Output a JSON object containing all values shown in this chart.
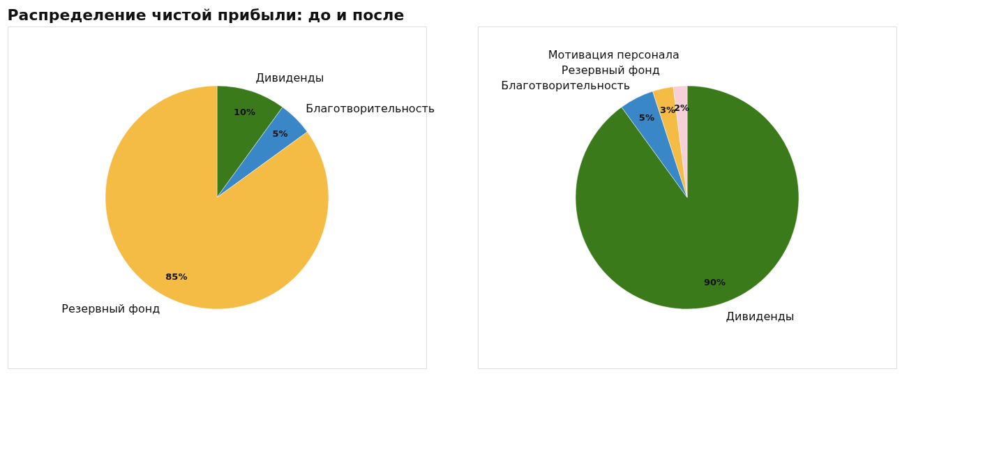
{
  "chart_data": [
    {
      "type": "pie",
      "title": "Распределение чистой прибыли: до и после",
      "categories": [
        "Дивиденды",
        "Благотворительность",
        "Резервный фонд"
      ],
      "values": [
        10,
        5,
        85
      ],
      "colors": [
        "#3a7a1a",
        "#3a87c8",
        "#f4bb45"
      ],
      "value_labels": [
        "10%",
        "5%",
        "85%"
      ],
      "legend": false
    },
    {
      "type": "pie",
      "categories": [
        "Дивиденды",
        "Благотворительность",
        "Резервный фонд",
        "Мотивация персонала"
      ],
      "values": [
        90,
        5,
        3,
        2
      ],
      "colors": [
        "#3a7a1a",
        "#3a87c8",
        "#f4bb45",
        "#f5d0d8"
      ],
      "value_labels": [
        "90%",
        "5%",
        "3%",
        "2%"
      ],
      "legend": false
    }
  ]
}
